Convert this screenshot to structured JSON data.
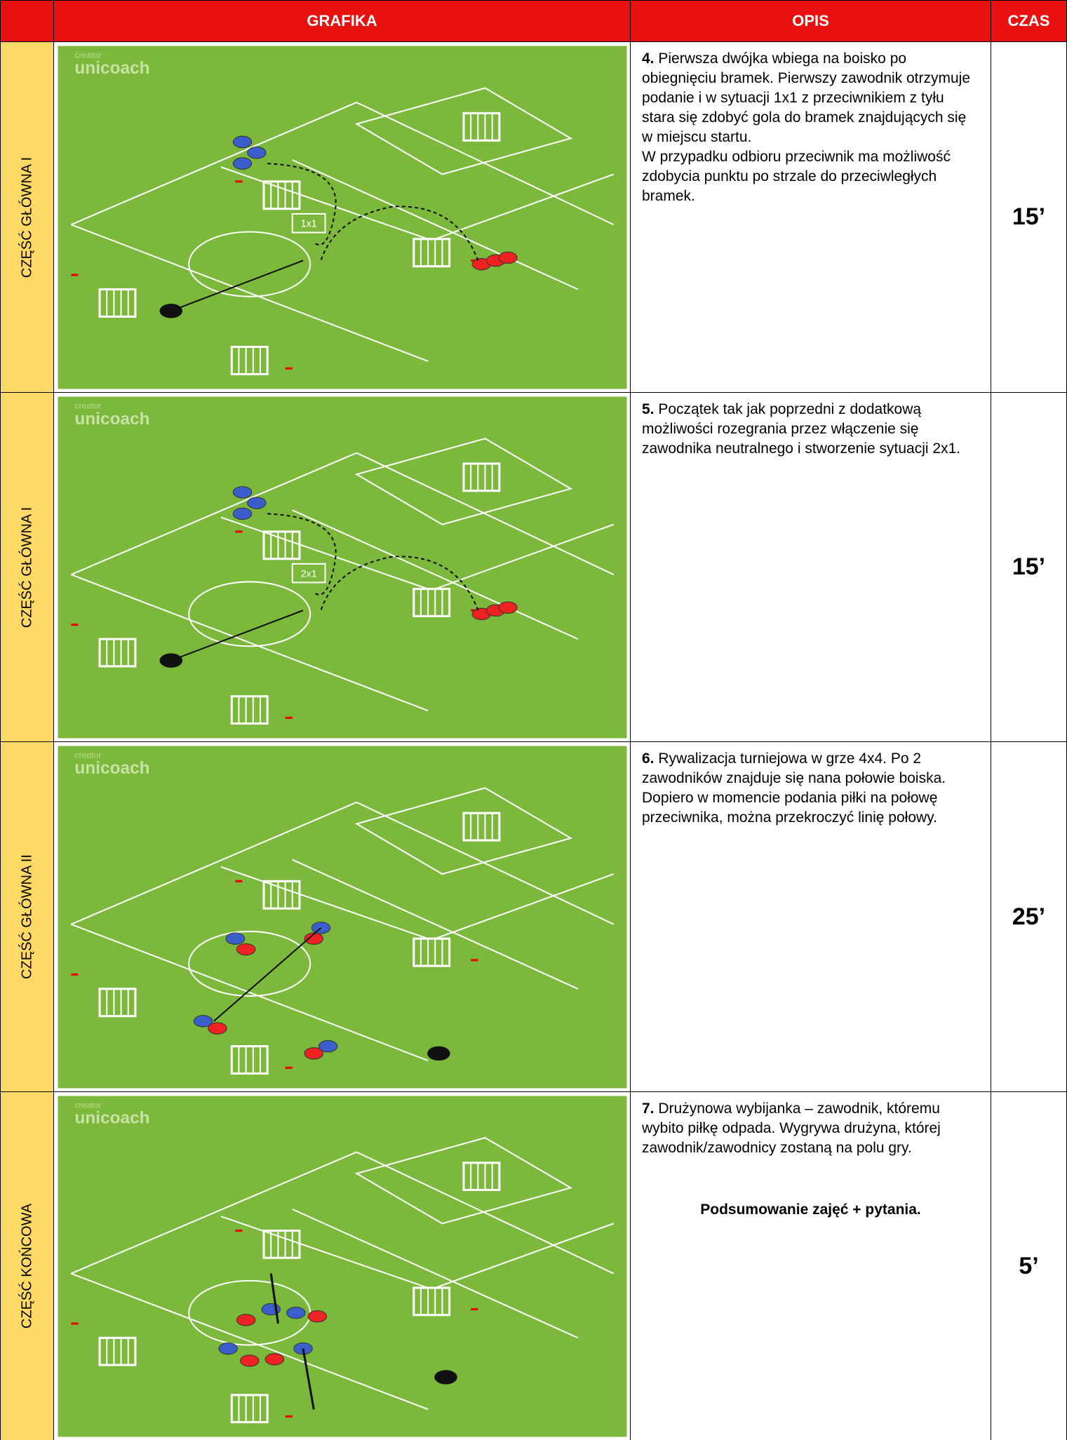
{
  "header": {
    "graphic": "GRAFIKA",
    "description": "OPIS",
    "time": "CZAS"
  },
  "rows": [
    {
      "section": "CZĘŚĆ GŁÓWNA I",
      "number": "4.",
      "paragraphs": [
        "Pierwsza dwójka wbiega na boisko po obiegnięciu bramek. Pierwszy zawodnik otrzymuje podanie i w sytuacji 1x1 z przeciwnikiem z tyłu stara się zdobyć gola do bramek znajdujących się w miejscu startu.",
        "W przypadku odbioru przeciwnik ma możliwość zdobycia punktu po strzale do przeciwległych bramek."
      ],
      "time": "15’",
      "graphic": {
        "watermark": [
          "creator",
          "unicoach"
        ],
        "box_label": "1x1"
      }
    },
    {
      "section": "CZĘŚĆ GŁÓWNA I",
      "number": "5.",
      "paragraphs": [
        "Początek tak jak poprzedni z dodatkową możliwości rozegrania przez włączenie się zawodnika neutralnego i stworzenie sytuacji 2x1."
      ],
      "time": "15’",
      "graphic": {
        "watermark": [
          "creator",
          "unicoach"
        ],
        "box_label": "2x1"
      }
    },
    {
      "section": "CZĘŚĆ GŁÓWNA II",
      "number": "6.",
      "paragraphs": [
        "Rywalizacja turniejowa w grze 4x4. Po 2 zawodników znajduje się nana połowie boiska. Dopiero w momencie podania piłki na połowę przeciwnika, można przekroczyć linię połowy."
      ],
      "time": "25’",
      "graphic": {
        "watermark": [
          "creator",
          "unicoach"
        ]
      }
    },
    {
      "section": "CZĘŚĆ KOŃCOWA",
      "number": "7.",
      "paragraphs": [
        "Drużynowa wybijanka – zawodnik, któremu wybito piłkę odpada. Wygrywa drużyna, której zawodnik/zawodnicy zostaną na polu gry."
      ],
      "summary": "Podsumowanie zajęć + pytania.",
      "time": "5’",
      "graphic": {
        "watermark": [
          "creator",
          "unicoach"
        ]
      }
    }
  ]
}
